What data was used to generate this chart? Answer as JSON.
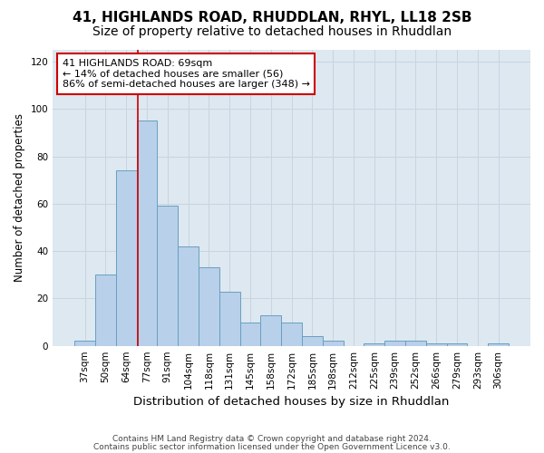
{
  "title1": "41, HIGHLANDS ROAD, RHUDDLAN, RHYL, LL18 2SB",
  "title2": "Size of property relative to detached houses in Rhuddlan",
  "xlabel": "Distribution of detached houses by size in Rhuddlan",
  "ylabel": "Number of detached properties",
  "categories": [
    "37sqm",
    "50sqm",
    "64sqm",
    "77sqm",
    "91sqm",
    "104sqm",
    "118sqm",
    "131sqm",
    "145sqm",
    "158sqm",
    "172sqm",
    "185sqm",
    "198sqm",
    "212sqm",
    "225sqm",
    "239sqm",
    "252sqm",
    "266sqm",
    "279sqm",
    "293sqm",
    "306sqm"
  ],
  "values": [
    2,
    30,
    74,
    95,
    59,
    42,
    33,
    23,
    10,
    13,
    10,
    4,
    2,
    0,
    1,
    2,
    2,
    1,
    1,
    0,
    1
  ],
  "bar_color": "#b8d0ea",
  "bar_edge_color": "#6a9fc0",
  "bar_edge_width": 0.7,
  "vline_x": 2.55,
  "vline_color": "#cc0000",
  "vline_lw": 1.2,
  "annotation_text": "41 HIGHLANDS ROAD: 69sqm\n← 14% of detached houses are smaller (56)\n86% of semi-detached houses are larger (348) →",
  "annotation_box_color": "white",
  "annotation_box_edge": "#cc0000",
  "ylim": [
    0,
    125
  ],
  "yticks": [
    0,
    20,
    40,
    60,
    80,
    100,
    120
  ],
  "grid_color": "#c8d4e0",
  "bg_color": "#dde8f0",
  "footer1": "Contains HM Land Registry data © Crown copyright and database right 2024.",
  "footer2": "Contains public sector information licensed under the Open Government Licence v3.0.",
  "title1_fontsize": 11,
  "title2_fontsize": 10,
  "xlabel_fontsize": 9.5,
  "ylabel_fontsize": 8.5,
  "tick_fontsize": 7.5,
  "annotation_fontsize": 8,
  "footer_fontsize": 6.5
}
